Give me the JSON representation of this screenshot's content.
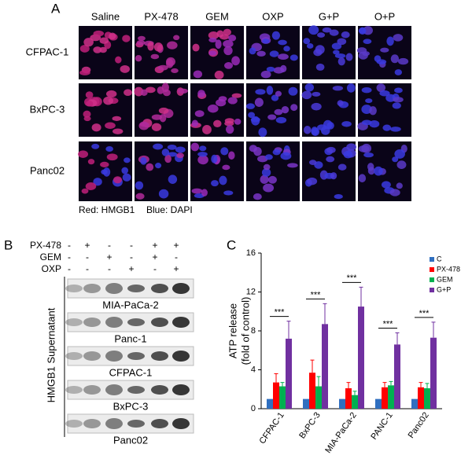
{
  "panel_a": {
    "label": "A",
    "columns": [
      "Saline",
      "PX-478",
      "GEM",
      "OXP",
      "G+P",
      "O+P"
    ],
    "rows": [
      "CFPAC-1",
      "BxPC-3",
      "Panc02"
    ],
    "caption": [
      "Red: HMGB1",
      "Blue: DAPI"
    ]
  },
  "panel_b": {
    "label": "B",
    "treatments": [
      {
        "name": "PX-478",
        "signs": [
          "-",
          "+",
          "-",
          "-",
          "+",
          "+"
        ]
      },
      {
        "name": "GEM",
        "signs": [
          "-",
          "-",
          "+",
          "-",
          "+",
          "-"
        ]
      },
      {
        "name": "OXP",
        "signs": [
          "-",
          "-",
          "-",
          "+",
          "-",
          "+"
        ]
      }
    ],
    "y_label": "HMGB1 Supernatant",
    "blots": [
      "MIA-PaCa-2",
      "Panc-1",
      "CFPAC-1",
      "BxPC-3",
      "Panc02"
    ]
  },
  "chart_data": {
    "type": "bar",
    "label": "C",
    "y_label": [
      "ATP release",
      "(fold of control)"
    ],
    "categories": [
      "CFPAC-1",
      "BxPC-3",
      "MIA-PaCa-2",
      "PANC-1",
      "Panc02"
    ],
    "series": [
      {
        "name": "C",
        "color": "#2f6fc0",
        "values": [
          1,
          1,
          1,
          1,
          1
        ]
      },
      {
        "name": "PX-478",
        "color": "#ff0000",
        "values": [
          2.7,
          3.7,
          2.1,
          2.2,
          2.2
        ],
        "errors": [
          0.9,
          1.3,
          0.6,
          0.5,
          0.5
        ]
      },
      {
        "name": "GEM",
        "color": "#00b050",
        "values": [
          2.3,
          2.3,
          1.4,
          2.4,
          2.1
        ],
        "errors": [
          0.4,
          1.0,
          0.4,
          0.4,
          0.5
        ]
      },
      {
        "name": "G+P",
        "color": "#7030a0",
        "values": [
          7.2,
          8.7,
          10.5,
          6.6,
          7.3
        ],
        "errors": [
          1.8,
          2.1,
          2.0,
          1.2,
          1.6
        ]
      }
    ],
    "significance": [
      "***",
      "***",
      "***",
      "***",
      "***"
    ],
    "ylim": [
      0,
      16
    ],
    "yticks": [
      0,
      4,
      8,
      12,
      16
    ]
  }
}
